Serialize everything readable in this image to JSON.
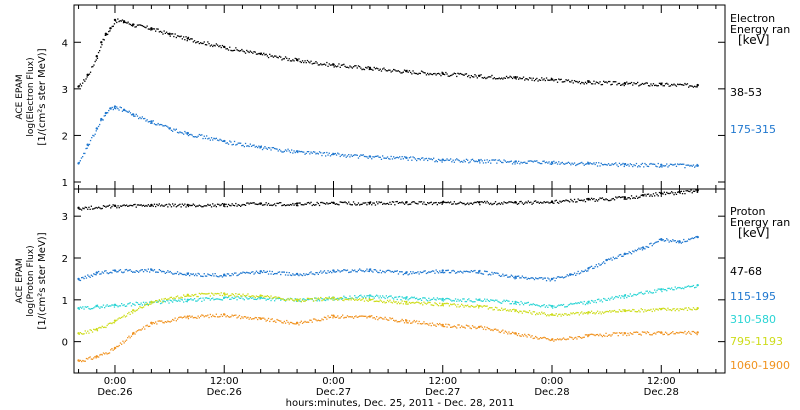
{
  "chart_data": [
    {
      "type": "scatter",
      "panel": "electron",
      "ylabel_lines": [
        "ACE EPAM",
        "log(Electron Flux)",
        "[1/(cm²s ster MeV)]"
      ],
      "ylim": [
        0.85,
        4.8
      ],
      "yticks": [
        1,
        2,
        3,
        4
      ],
      "xlim_hours": [
        -4.5,
        67
      ],
      "legend_title": [
        "Electron",
        "Energy ran",
        "[keV]"
      ],
      "series": [
        {
          "name": "38-53",
          "color": "#000000",
          "x": [
            -4.0,
            -3.0,
            -2.0,
            -1.5,
            -1.0,
            -0.5,
            0.0,
            1.0,
            2.0,
            4.0,
            6.0,
            8.0,
            12.0,
            16.0,
            20.0,
            24.0,
            28.0,
            32.0,
            36.0,
            40.0,
            44.0,
            48.0,
            52.0,
            56.0,
            60.0,
            64.0
          ],
          "y": [
            3.05,
            3.3,
            3.7,
            4.0,
            4.18,
            4.3,
            4.48,
            4.45,
            4.38,
            4.3,
            4.18,
            4.08,
            3.9,
            3.75,
            3.62,
            3.52,
            3.45,
            3.38,
            3.33,
            3.28,
            3.25,
            3.2,
            3.15,
            3.12,
            3.1,
            3.08
          ]
        },
        {
          "name": "175-315",
          "color": "#1f77cf",
          "x": [
            -4.0,
            -3.0,
            -2.0,
            -1.5,
            -1.0,
            -0.5,
            0.0,
            1.0,
            2.0,
            4.0,
            6.0,
            8.0,
            12.0,
            16.0,
            20.0,
            24.0,
            28.0,
            32.0,
            36.0,
            40.0,
            44.0,
            48.0,
            52.0,
            56.0,
            60.0,
            64.0
          ],
          "y": [
            1.4,
            1.8,
            2.15,
            2.35,
            2.48,
            2.58,
            2.62,
            2.55,
            2.45,
            2.3,
            2.15,
            2.05,
            1.88,
            1.75,
            1.66,
            1.6,
            1.55,
            1.52,
            1.48,
            1.46,
            1.44,
            1.42,
            1.4,
            1.38,
            1.37,
            1.35
          ]
        }
      ]
    },
    {
      "type": "scatter",
      "panel": "proton",
      "ylabel_lines": [
        "ACE EPAM",
        "log(Proton Flux)",
        "[1/(cm²s ster MeV)]"
      ],
      "ylim": [
        -0.75,
        3.65
      ],
      "yticks": [
        0,
        1,
        2,
        3
      ],
      "xlim_hours": [
        -4.5,
        67
      ],
      "legend_title": [
        "Proton",
        "Energy ran",
        "[keV]"
      ],
      "series": [
        {
          "name": "47-68",
          "color": "#000000",
          "x": [
            -4.0,
            0.0,
            4.0,
            8.0,
            12.0,
            16.0,
            20.0,
            24.0,
            28.0,
            32.0,
            36.0,
            40.0,
            44.0,
            48.0,
            52.0,
            56.0,
            58.0,
            60.0,
            62.0,
            64.0
          ],
          "y": [
            3.2,
            3.25,
            3.27,
            3.27,
            3.28,
            3.3,
            3.3,
            3.32,
            3.32,
            3.33,
            3.33,
            3.33,
            3.33,
            3.35,
            3.4,
            3.45,
            3.5,
            3.55,
            3.58,
            3.62
          ]
        },
        {
          "name": "115-195",
          "color": "#1f77cf",
          "x": [
            -4.0,
            -2.0,
            0.0,
            4.0,
            8.0,
            12.0,
            16.0,
            20.0,
            24.0,
            28.0,
            32.0,
            36.0,
            40.0,
            44.0,
            48.0,
            50.0,
            52.0,
            54.0,
            56.0,
            58.0,
            60.0,
            62.0,
            64.0
          ],
          "y": [
            1.5,
            1.65,
            1.7,
            1.72,
            1.62,
            1.6,
            1.68,
            1.62,
            1.7,
            1.72,
            1.65,
            1.7,
            1.68,
            1.55,
            1.5,
            1.6,
            1.75,
            1.95,
            2.1,
            2.25,
            2.45,
            2.4,
            2.5
          ]
        },
        {
          "name": "310-580",
          "color": "#2ad4d4",
          "x": [
            -4.0,
            -2.0,
            0.0,
            4.0,
            8.0,
            12.0,
            16.0,
            20.0,
            24.0,
            28.0,
            32.0,
            36.0,
            40.0,
            44.0,
            48.0,
            52.0,
            56.0,
            60.0,
            64.0
          ],
          "y": [
            0.8,
            0.85,
            0.88,
            0.95,
            1.0,
            1.05,
            1.05,
            1.0,
            1.05,
            1.1,
            1.05,
            1.02,
            1.0,
            0.95,
            0.85,
            0.95,
            1.1,
            1.25,
            1.35
          ]
        },
        {
          "name": "795-1193",
          "color": "#cddc1a",
          "x": [
            -4.0,
            -2.0,
            0.0,
            2.0,
            4.0,
            8.0,
            12.0,
            16.0,
            20.0,
            24.0,
            28.0,
            32.0,
            36.0,
            40.0,
            44.0,
            48.0,
            52.0,
            56.0,
            60.0,
            64.0
          ],
          "y": [
            0.2,
            0.3,
            0.5,
            0.75,
            0.95,
            1.12,
            1.15,
            1.1,
            1.0,
            1.05,
            1.0,
            0.95,
            0.9,
            0.85,
            0.75,
            0.65,
            0.7,
            0.75,
            0.78,
            0.8
          ]
        },
        {
          "name": "1060-1900",
          "color": "#f0921e",
          "x": [
            -4.0,
            -2.0,
            0.0,
            2.0,
            4.0,
            8.0,
            12.0,
            16.0,
            20.0,
            24.0,
            28.0,
            32.0,
            36.0,
            40.0,
            44.0,
            48.0,
            52.0,
            56.0,
            60.0,
            64.0
          ],
          "y": [
            -0.45,
            -0.35,
            -0.15,
            0.2,
            0.45,
            0.6,
            0.65,
            0.55,
            0.45,
            0.62,
            0.6,
            0.5,
            0.4,
            0.35,
            0.2,
            0.05,
            0.15,
            0.2,
            0.22,
            0.22
          ]
        }
      ]
    }
  ],
  "x_axis": {
    "ticks": [
      {
        "hours": 0,
        "time": "0:00",
        "day": "Dec.26"
      },
      {
        "hours": 12,
        "time": "12:00",
        "day": "Dec.26"
      },
      {
        "hours": 24,
        "time": "0:00",
        "day": "Dec.27"
      },
      {
        "hours": 36,
        "time": "12:00",
        "day": "Dec.27"
      },
      {
        "hours": 48,
        "time": "0:00",
        "day": "Dec.28"
      },
      {
        "hours": 60,
        "time": "12:00",
        "day": "Dec.28"
      }
    ],
    "xlabel": "hours:minutes, Dec. 25, 2011 - Dec. 28, 2011"
  }
}
